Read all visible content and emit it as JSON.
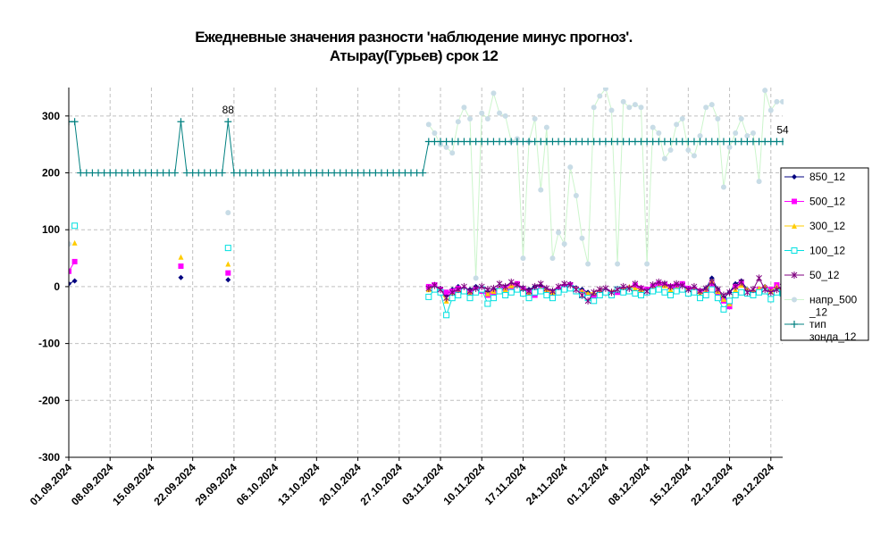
{
  "chart_data": {
    "type": "line",
    "title": "Ежедневные значения разности 'наблюдение минус прогноз'.",
    "subtitle": "Атырау(Гурьев)    срок 12",
    "x": [
      "01.09.2024",
      "02.09.2024",
      "03.09.2024",
      "04.09.2024",
      "05.09.2024",
      "06.09.2024",
      "07.09.2024",
      "08.09.2024",
      "09.09.2024",
      "10.09.2024",
      "11.09.2024",
      "12.09.2024",
      "13.09.2024",
      "14.09.2024",
      "15.09.2024",
      "16.09.2024",
      "17.09.2024",
      "18.09.2024",
      "19.09.2024",
      "20.09.2024",
      "21.09.2024",
      "22.09.2024",
      "23.09.2024",
      "24.09.2024",
      "25.09.2024",
      "26.09.2024",
      "27.09.2024",
      "28.09.2024",
      "29.09.2024",
      "30.09.2024",
      "01.10.2024",
      "02.10.2024",
      "03.10.2024",
      "04.10.2024",
      "05.10.2024",
      "06.10.2024",
      "07.10.2024",
      "08.10.2024",
      "09.10.2024",
      "10.10.2024",
      "11.10.2024",
      "12.10.2024",
      "13.10.2024",
      "14.10.2024",
      "15.10.2024",
      "16.10.2024",
      "17.10.2024",
      "18.10.2024",
      "19.10.2024",
      "20.10.2024",
      "21.10.2024",
      "22.10.2024",
      "23.10.2024",
      "24.10.2024",
      "25.10.2024",
      "26.10.2024",
      "27.10.2024",
      "28.10.2024",
      "29.10.2024",
      "30.10.2024",
      "31.10.2024",
      "01.11.2024",
      "02.11.2024",
      "03.11.2024",
      "04.11.2024",
      "05.11.2024",
      "06.11.2024",
      "07.11.2024",
      "08.11.2024",
      "09.11.2024",
      "10.11.2024",
      "11.11.2024",
      "12.11.2024",
      "13.11.2024",
      "14.11.2024",
      "15.11.2024",
      "16.11.2024",
      "17.11.2024",
      "18.11.2024",
      "19.11.2024",
      "20.11.2024",
      "21.11.2024",
      "22.11.2024",
      "23.11.2024",
      "24.11.2024",
      "25.11.2024",
      "26.11.2024",
      "27.11.2024",
      "28.11.2024",
      "29.11.2024",
      "30.11.2024",
      "01.12.2024",
      "02.12.2024",
      "03.12.2024",
      "04.12.2024",
      "05.12.2024",
      "06.12.2024",
      "07.12.2024",
      "08.12.2024",
      "09.12.2024",
      "10.12.2024",
      "11.12.2024",
      "12.12.2024",
      "13.12.2024",
      "14.12.2024",
      "15.12.2024",
      "16.12.2024",
      "17.12.2024",
      "18.12.2024",
      "19.12.2024",
      "20.12.2024",
      "21.12.2024",
      "22.12.2024",
      "23.12.2024",
      "24.12.2024",
      "25.12.2024",
      "26.12.2024",
      "27.12.2024",
      "28.12.2024",
      "29.12.2024",
      "30.12.2024",
      "31.12.2024"
    ],
    "xticks": [
      "01.09.2024",
      "08.09.2024",
      "15.09.2024",
      "22.09.2024",
      "29.09.2024",
      "06.10.2024",
      "13.10.2024",
      "20.10.2024",
      "27.10.2024",
      "03.11.2024",
      "10.11.2024",
      "17.11.2024",
      "24.11.2024",
      "01.12.2024",
      "08.12.2024",
      "15.12.2024",
      "22.12.2024",
      "29.12.2024"
    ],
    "ylim": [
      -300,
      350
    ],
    "yticks": [
      -300,
      -200,
      -100,
      0,
      100,
      200,
      300
    ],
    "grid": true,
    "legend": "right",
    "annotations": [
      {
        "text": "88",
        "x": "28.09.2024"
      },
      {
        "text": "54",
        "x": "31.12.2024"
      }
    ],
    "series": [
      {
        "name": "850_12",
        "color": "#000080",
        "marker": "diamond",
        "values": [
          5,
          10,
          null,
          null,
          null,
          null,
          null,
          null,
          null,
          null,
          null,
          null,
          null,
          null,
          null,
          null,
          null,
          null,
          null,
          16,
          null,
          null,
          null,
          null,
          null,
          null,
          null,
          12,
          null,
          null,
          null,
          null,
          null,
          null,
          null,
          null,
          null,
          null,
          null,
          null,
          null,
          null,
          null,
          null,
          null,
          null,
          null,
          null,
          null,
          null,
          null,
          null,
          null,
          null,
          null,
          null,
          null,
          null,
          null,
          null,
          null,
          -2,
          0,
          -3,
          -15,
          -5,
          0,
          -8,
          -5,
          0,
          -3,
          -10,
          -5,
          -2,
          0,
          5,
          3,
          -2,
          -5,
          0,
          2,
          -5,
          -8,
          -3,
          0,
          5,
          -2,
          -5,
          -10,
          -15,
          -8,
          -5,
          -10,
          -8,
          -5,
          -3,
          0,
          -5,
          -8,
          -3,
          2,
          5,
          -2,
          0,
          3,
          -5,
          -2,
          -10,
          -3,
          15,
          -5,
          -20,
          -10,
          5,
          10,
          -5,
          -8,
          -5,
          0,
          -8,
          -5,
          -3
        ]
      },
      {
        "name": "500_12",
        "color": "#ff00ff",
        "marker": "square",
        "values": [
          27,
          44,
          null,
          null,
          null,
          null,
          null,
          null,
          null,
          null,
          null,
          null,
          null,
          null,
          null,
          null,
          null,
          null,
          null,
          36,
          null,
          null,
          null,
          null,
          null,
          null,
          null,
          24,
          null,
          null,
          null,
          null,
          null,
          null,
          null,
          null,
          null,
          null,
          null,
          null,
          null,
          null,
          null,
          null,
          null,
          null,
          null,
          null,
          null,
          null,
          null,
          null,
          null,
          null,
          null,
          null,
          null,
          null,
          null,
          null,
          null,
          0,
          3,
          -5,
          -10,
          -8,
          -3,
          -5,
          -10,
          -5,
          -8,
          -15,
          -10,
          -5,
          -3,
          0,
          5,
          -5,
          -10,
          -15,
          -5,
          -8,
          -12,
          -5,
          0,
          3,
          -5,
          -10,
          -15,
          -20,
          -10,
          -8,
          -12,
          -10,
          -5,
          -3,
          2,
          -3,
          -5,
          0,
          5,
          3,
          0,
          2,
          5,
          -3,
          -5,
          -8,
          -12,
          5,
          -10,
          -25,
          -35,
          0,
          5,
          -8,
          -10,
          -5,
          -3,
          -5,
          3,
          -5
        ]
      },
      {
        "name": "300_12",
        "color": "#ffcc00",
        "marker": "triangle",
        "values": [
          null,
          77,
          null,
          null,
          null,
          null,
          null,
          null,
          null,
          null,
          null,
          null,
          null,
          null,
          null,
          null,
          null,
          null,
          null,
          52,
          null,
          null,
          null,
          null,
          null,
          null,
          null,
          40,
          null,
          null,
          null,
          null,
          null,
          null,
          null,
          null,
          null,
          null,
          null,
          null,
          null,
          null,
          null,
          null,
          null,
          null,
          null,
          null,
          null,
          null,
          null,
          null,
          null,
          null,
          null,
          null,
          null,
          null,
          null,
          null,
          null,
          -5,
          0,
          -8,
          -25,
          -15,
          -10,
          -5,
          -12,
          -8,
          -5,
          -12,
          -8,
          -3,
          -5,
          2,
          0,
          -8,
          -12,
          -10,
          -3,
          -5,
          -10,
          -8,
          -5,
          0,
          -3,
          -8,
          -12,
          -10,
          -5,
          -5,
          -8,
          -3,
          -5,
          0,
          -3,
          -5,
          -8,
          -3,
          0,
          2,
          -5,
          -3,
          0,
          -8,
          -5,
          -12,
          -8,
          10,
          -8,
          -22,
          -30,
          -5,
          3,
          -5,
          -8,
          -3,
          0,
          -8,
          0,
          -8
        ]
      },
      {
        "name": "100_12",
        "color": "#00e0e0",
        "marker": "open-square",
        "values": [
          null,
          107,
          null,
          null,
          null,
          null,
          null,
          null,
          null,
          null,
          null,
          null,
          null,
          null,
          null,
          null,
          null,
          null,
          null,
          null,
          null,
          null,
          null,
          null,
          null,
          null,
          null,
          68,
          null,
          null,
          null,
          null,
          null,
          null,
          null,
          null,
          null,
          null,
          null,
          null,
          null,
          null,
          null,
          null,
          null,
          null,
          null,
          null,
          null,
          null,
          null,
          null,
          null,
          null,
          null,
          null,
          null,
          null,
          null,
          null,
          null,
          -18,
          -5,
          -10,
          -50,
          -20,
          -15,
          -8,
          -20,
          -10,
          -5,
          -30,
          -20,
          -8,
          -15,
          -10,
          -5,
          -12,
          -20,
          -10,
          -8,
          -15,
          -20,
          -10,
          -5,
          -3,
          -8,
          -15,
          -20,
          -25,
          -15,
          -10,
          -15,
          -5,
          -10,
          -8,
          -12,
          -15,
          -10,
          -8,
          -5,
          -10,
          -15,
          -8,
          -5,
          -12,
          -10,
          -20,
          -15,
          -5,
          -20,
          -40,
          -25,
          -15,
          -10,
          -12,
          -15,
          -10,
          -8,
          -22,
          -10,
          -12
        ]
      },
      {
        "name": "50_12",
        "color": "#800080",
        "marker": "star",
        "values": [
          null,
          null,
          null,
          null,
          null,
          null,
          null,
          null,
          null,
          null,
          null,
          null,
          null,
          null,
          null,
          null,
          null,
          null,
          null,
          null,
          null,
          null,
          null,
          null,
          null,
          null,
          null,
          null,
          null,
          null,
          null,
          null,
          null,
          null,
          null,
          null,
          null,
          null,
          null,
          null,
          null,
          null,
          null,
          null,
          null,
          null,
          null,
          null,
          null,
          null,
          null,
          null,
          null,
          null,
          null,
          null,
          null,
          null,
          null,
          null,
          null,
          -3,
          2,
          -5,
          -20,
          -10,
          -5,
          0,
          -8,
          -3,
          0,
          -5,
          -3,
          5,
          0,
          8,
          3,
          -3,
          -8,
          0,
          5,
          -3,
          -8,
          0,
          5,
          3,
          -5,
          -15,
          -25,
          -10,
          -5,
          -3,
          -10,
          -5,
          0,
          -3,
          5,
          -3,
          -8,
          3,
          8,
          5,
          0,
          5,
          2,
          -5,
          0,
          -8,
          -3,
          8,
          -5,
          -15,
          -10,
          0,
          8,
          -10,
          -5,
          15,
          -5,
          -10,
          -5,
          0
        ]
      },
      {
        "name": "напр_500_12",
        "color": "#c8dce6",
        "line_color": "#ccf5cc",
        "marker": "circle",
        "values": [
          75,
          null,
          null,
          null,
          null,
          null,
          null,
          null,
          null,
          null,
          null,
          null,
          null,
          null,
          null,
          null,
          null,
          null,
          null,
          null,
          null,
          null,
          null,
          null,
          null,
          null,
          null,
          130,
          null,
          null,
          null,
          null,
          null,
          null,
          null,
          null,
          null,
          null,
          null,
          null,
          null,
          null,
          null,
          null,
          null,
          null,
          null,
          null,
          null,
          null,
          null,
          null,
          null,
          null,
          null,
          null,
          null,
          null,
          null,
          null,
          null,
          285,
          270,
          250,
          245,
          235,
          290,
          315,
          295,
          15,
          305,
          295,
          340,
          305,
          300,
          255,
          260,
          50,
          255,
          295,
          170,
          280,
          50,
          95,
          75,
          210,
          160,
          85,
          40,
          315,
          335,
          348,
          310,
          40,
          325,
          315,
          320,
          315,
          40,
          280,
          270,
          225,
          240,
          285,
          295,
          240,
          230,
          265,
          315,
          320,
          295,
          175,
          245,
          270,
          295,
          265,
          270,
          185,
          345,
          310,
          325,
          325
        ]
      },
      {
        "name": "тип зонда_12",
        "color": "#008080",
        "marker": "plus",
        "values": [
          290,
          290,
          200,
          200,
          200,
          200,
          200,
          200,
          200,
          200,
          200,
          200,
          200,
          200,
          200,
          200,
          200,
          200,
          200,
          290,
          200,
          200,
          200,
          200,
          200,
          200,
          200,
          290,
          200,
          200,
          200,
          200,
          200,
          200,
          200,
          200,
          200,
          200,
          200,
          200,
          200,
          200,
          200,
          200,
          200,
          200,
          200,
          200,
          200,
          200,
          200,
          200,
          200,
          200,
          200,
          200,
          200,
          200,
          200,
          200,
          200,
          255,
          255,
          255,
          255,
          255,
          255,
          255,
          255,
          255,
          255,
          255,
          255,
          255,
          255,
          255,
          255,
          255,
          255,
          255,
          255,
          255,
          255,
          255,
          255,
          255,
          255,
          255,
          255,
          255,
          255,
          255,
          255,
          255,
          255,
          255,
          255,
          255,
          255,
          255,
          255,
          255,
          255,
          255,
          255,
          255,
          255,
          255,
          255,
          255,
          255,
          255,
          255,
          255,
          255,
          255,
          255,
          255,
          255,
          255,
          255,
          255
        ]
      }
    ]
  }
}
